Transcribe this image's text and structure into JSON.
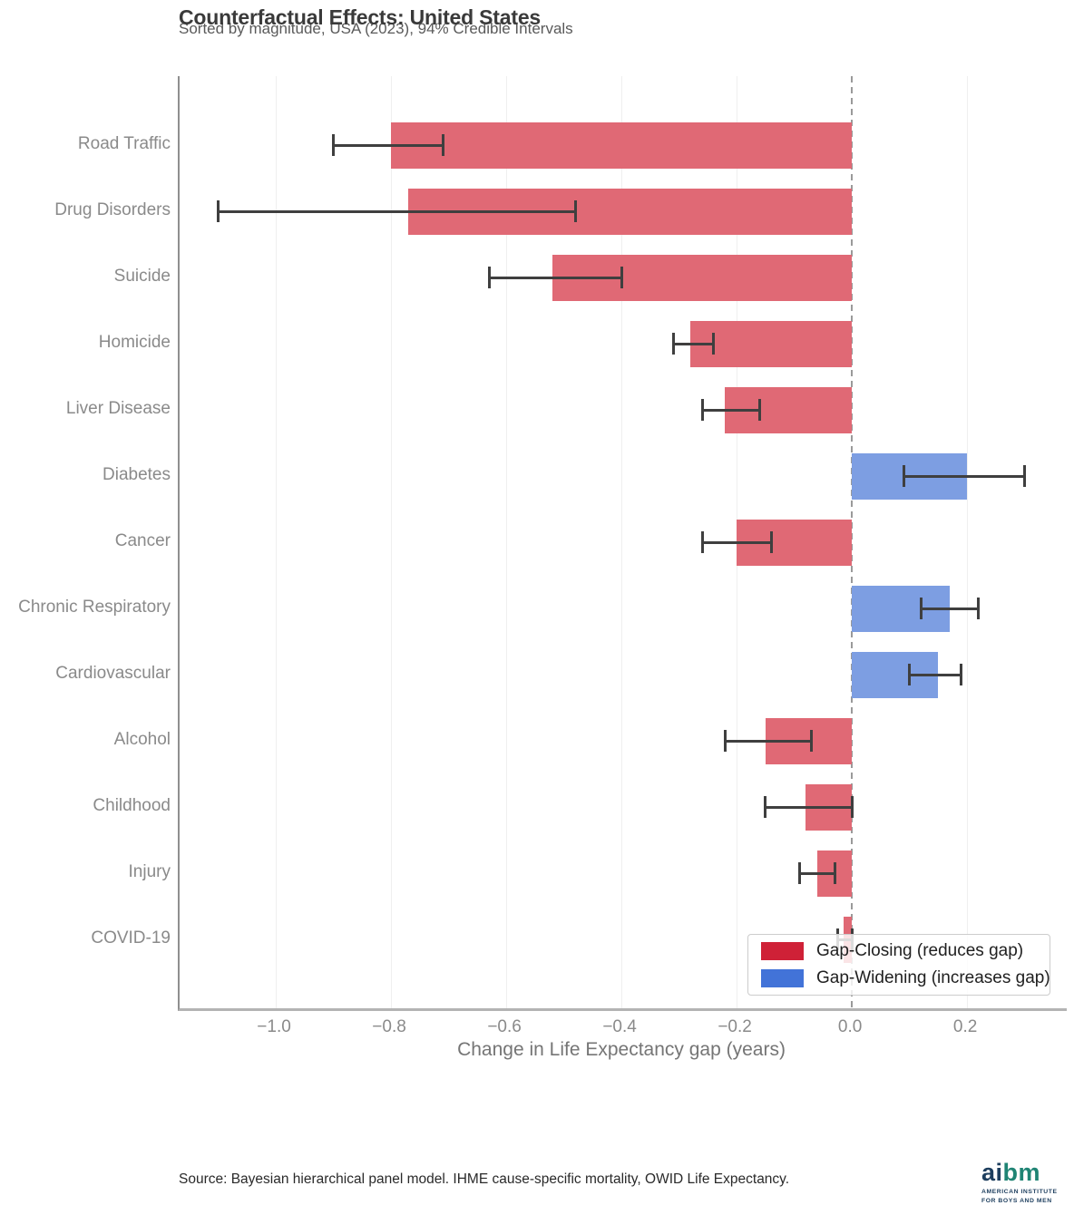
{
  "chart_data": {
    "type": "bar",
    "orientation": "horizontal",
    "title": "Counterfactual Effects: United States",
    "subtitle": "Sorted by magnitude, USA (2023), 94% Credible Intervals",
    "xlabel": "Change in Life Expectancy gap (years)",
    "xlim": [
      -1.167,
      0.373
    ],
    "xticks": [
      -1.0,
      -0.8,
      -0.6,
      -0.4,
      -0.2,
      0.0,
      0.2
    ],
    "xtick_labels": [
      "−1.0",
      "−0.8",
      "−0.6",
      "−0.4",
      "−0.2",
      "0.0",
      "0.2"
    ],
    "grid": true,
    "zero_line": "dashed",
    "categories": [
      "Road Traffic",
      "Drug Disorders",
      "Suicide",
      "Homicide",
      "Liver Disease",
      "Diabetes",
      "Cancer",
      "Chronic Respiratory",
      "Cardiovascular",
      "Alcohol",
      "Childhood",
      "Injury",
      "COVID-19"
    ],
    "values": [
      -0.8,
      -0.77,
      -0.52,
      -0.28,
      -0.22,
      0.2,
      -0.2,
      0.17,
      0.15,
      -0.15,
      -0.08,
      -0.06,
      -0.015
    ],
    "ci_low": [
      -0.9,
      -1.1,
      -0.63,
      -0.31,
      -0.26,
      0.09,
      -0.26,
      0.12,
      0.1,
      -0.22,
      -0.15,
      -0.09,
      -0.025
    ],
    "ci_high": [
      -0.71,
      -0.48,
      -0.4,
      -0.24,
      -0.16,
      0.3,
      -0.14,
      0.22,
      0.19,
      -0.07,
      0.0,
      -0.03,
      0.0
    ],
    "effect": [
      "closing",
      "closing",
      "closing",
      "closing",
      "closing",
      "widening",
      "closing",
      "widening",
      "widening",
      "closing",
      "closing",
      "closing",
      "closing"
    ],
    "colors": {
      "closing_bar": "#e06975",
      "widening_bar": "#7d9ee2",
      "closing_legend": "#cf2137",
      "widening_legend": "#4273d8",
      "error_bar": "#3f3f3f",
      "zero_line": "#9a9a9a"
    },
    "legend": {
      "position": "lower right",
      "items": [
        {
          "key": "closing",
          "label": "Gap-Closing (reduces gap)"
        },
        {
          "key": "widening",
          "label": "Gap-Widening (increases gap)"
        }
      ]
    }
  },
  "footer": {
    "source": "Source: Bayesian hierarchical panel model. IHME cause-specific mortality, OWID Life Expectancy.",
    "logo": {
      "wordmark_part1": "ai",
      "wordmark_part2": "bm",
      "tagline_line1": "AMERICAN INSTITUTE",
      "tagline_line2": "FOR BOYS AND MEN",
      "navy": "#1d3e5e",
      "teal": "#1f8474"
    }
  }
}
